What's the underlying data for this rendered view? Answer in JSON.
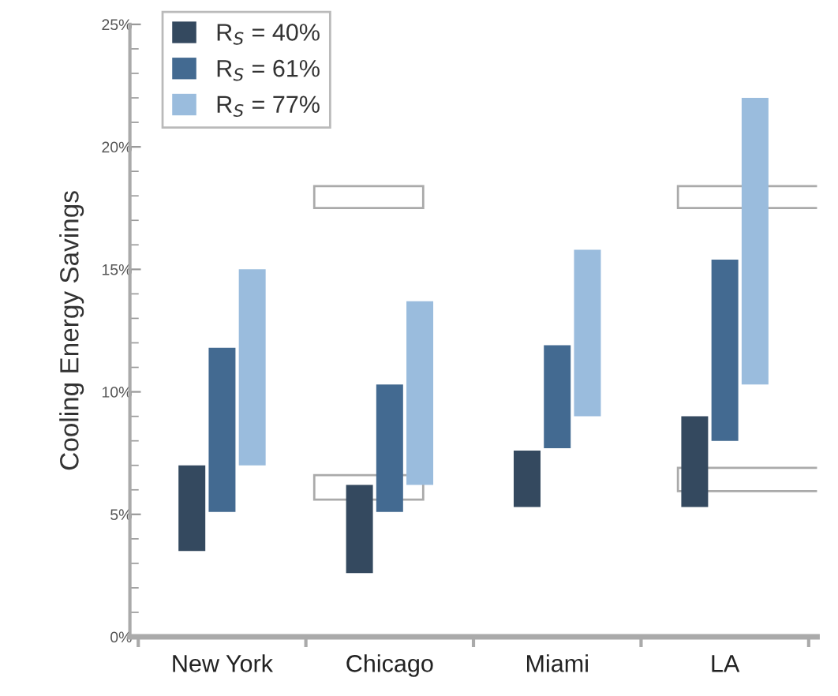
{
  "chart_data": {
    "type": "bar",
    "ylabel": "Cooling Energy Savings",
    "categories": [
      "New York",
      "Chicago",
      "Miami",
      "LA"
    ],
    "series": [
      {
        "name": "R$_{S}$ = 40%",
        "color": "#34495f",
        "base": [
          3.5,
          2.6,
          5.3,
          5.3
        ],
        "values": [
          3.5,
          3.6,
          2.3,
          3.7
        ]
      },
      {
        "name": "R$_{S}$ = 61%",
        "color": "#436a91",
        "base": [
          5.1,
          5.1,
          7.7,
          8.0
        ],
        "values": [
          6.7,
          5.2,
          4.2,
          7.4
        ]
      },
      {
        "name": "R$_{S}$ = 77%",
        "color": "#9abcdd",
        "base": [
          7.0,
          6.2,
          9.0,
          10.3
        ],
        "values": [
          8.0,
          7.5,
          6.8,
          11.7
        ]
      }
    ],
    "ylim": [
      0,
      25
    ],
    "yticks": [
      {
        "value": 0,
        "label": "0%"
      },
      {
        "value": 5,
        "label": "5%"
      },
      {
        "value": 10,
        "label": "10%"
      },
      {
        "value": 15,
        "label": "15%"
      },
      {
        "value": 20,
        "label": "20%"
      },
      {
        "value": 25,
        "label": "25%"
      }
    ],
    "legend": "top left",
    "grid": false
  }
}
